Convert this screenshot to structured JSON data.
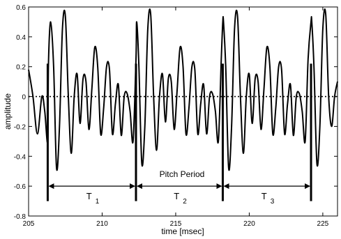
{
  "chart_data": {
    "type": "line",
    "title": "",
    "xlabel": "time [msec]",
    "ylabel": "amplitude",
    "xlim": [
      205,
      226
    ],
    "ylim": [
      -0.8,
      0.6
    ],
    "xticks": [
      "205",
      "210",
      "215",
      "220",
      "225"
    ],
    "yticks": [
      "0.6",
      "0.4",
      "0.2",
      "0",
      "-0.2",
      "-0.4",
      "-0.6",
      "-0.8"
    ],
    "grid": false,
    "zero_line": "dotted",
    "series": [
      {
        "x": [
          205.0,
          205.3,
          205.6,
          205.9,
          206.1,
          206.3,
          206.35,
          206.5,
          206.7,
          206.9,
          207.1,
          207.3,
          207.5,
          207.7,
          207.9,
          208.1,
          208.3,
          208.5,
          208.7,
          208.9,
          209.1,
          209.3,
          209.5,
          209.7,
          209.9,
          210.1,
          210.3,
          210.5,
          210.7,
          210.9,
          211.1,
          211.3,
          211.5,
          211.7,
          211.9,
          212.1,
          212.3,
          212.35,
          212.5,
          212.7,
          212.9,
          213.1,
          213.3,
          213.5,
          213.7,
          213.9,
          214.1,
          214.3,
          214.5,
          214.7,
          214.9,
          215.1,
          215.3,
          215.5,
          215.7,
          215.9,
          216.1,
          216.3,
          216.5,
          216.7,
          216.9,
          217.1,
          217.3,
          217.5,
          217.7,
          217.9,
          218.1,
          218.2,
          218.25,
          218.4,
          218.6,
          218.8,
          219.0,
          219.2,
          219.4,
          219.6,
          219.8,
          220.0,
          220.2,
          220.4,
          220.6,
          220.8,
          221.0,
          221.2,
          221.4,
          221.6,
          221.8,
          222.0,
          222.2,
          222.4,
          222.6,
          222.8,
          223.0,
          223.2,
          223.4,
          223.6,
          223.8,
          224.0,
          224.2,
          224.25,
          224.4,
          224.6,
          224.8,
          225.0,
          225.2,
          225.4,
          225.6,
          225.8,
          226.0
        ],
        "y": [
          0.18,
          0.0,
          -0.25,
          0.0,
          -0.1,
          -0.3,
          0.22,
          0.5,
          0.2,
          -0.48,
          -0.2,
          0.45,
          0.54,
          0.0,
          -0.38,
          0.0,
          0.15,
          -0.18,
          0.12,
          0.1,
          -0.22,
          0.05,
          0.33,
          0.2,
          -0.25,
          -0.08,
          0.2,
          0.18,
          -0.25,
          -0.05,
          0.08,
          -0.26,
          0.0,
          0.02,
          -0.1,
          -0.3,
          0.25,
          0.5,
          0.2,
          -0.45,
          -0.2,
          0.45,
          0.55,
          0.0,
          -0.36,
          0.0,
          0.15,
          -0.17,
          0.12,
          0.1,
          -0.22,
          0.05,
          0.33,
          0.2,
          -0.25,
          -0.08,
          0.2,
          0.18,
          -0.25,
          -0.05,
          0.08,
          -0.25,
          0.0,
          0.02,
          -0.1,
          -0.3,
          0.25,
          0.5,
          0.5,
          0.2,
          -0.48,
          -0.2,
          0.45,
          0.54,
          0.0,
          -0.38,
          0.0,
          0.15,
          -0.18,
          0.12,
          0.1,
          -0.22,
          0.05,
          0.33,
          0.2,
          -0.25,
          -0.08,
          0.2,
          0.18,
          -0.25,
          -0.05,
          0.08,
          -0.26,
          0.0,
          0.02,
          -0.1,
          -0.3,
          0.25,
          0.5,
          0.5,
          0.2,
          -0.45,
          -0.2,
          0.45,
          0.55,
          0.0,
          -0.2,
          0.0,
          0.1
        ]
      }
    ],
    "pitch_markers": [
      206.3,
      212.3,
      218.2,
      224.2
    ],
    "pitch_marker_bottom": -0.7,
    "arrow_y": -0.6,
    "annotations": {
      "pitch_period": "Pitch Period",
      "periods": [
        {
          "main": "T",
          "sub": "1"
        },
        {
          "main": "T",
          "sub": "2"
        },
        {
          "main": "T",
          "sub": "3"
        }
      ]
    }
  }
}
